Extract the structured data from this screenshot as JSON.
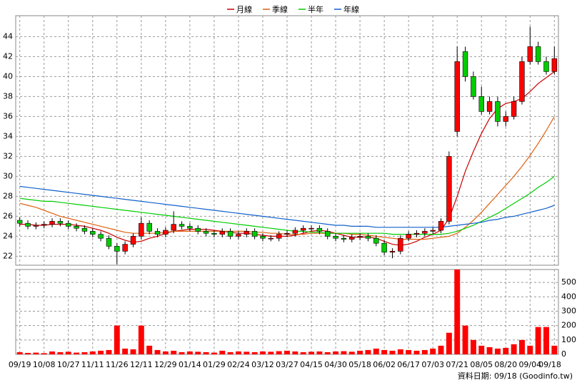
{
  "chart_data": {
    "type": "candlestick",
    "grid": true,
    "legend_position": "top",
    "up_color": "#ff0000",
    "down_color": "#00cc00",
    "categories": [
      "09/19",
      null,
      null,
      "10/08",
      null,
      null,
      "10/27",
      null,
      null,
      "11/11",
      null,
      null,
      "11/26",
      null,
      null,
      "12/11",
      null,
      null,
      "12/29",
      null,
      null,
      "01/14",
      null,
      null,
      "01/29",
      null,
      null,
      "02/24",
      null,
      null,
      "03/12",
      null,
      null,
      "03/27",
      null,
      null,
      "04/15",
      null,
      null,
      "04/30",
      null,
      null,
      "05/18",
      null,
      null,
      "06/02",
      null,
      null,
      "06/17",
      null,
      null,
      "07/03",
      null,
      null,
      "07/21",
      null,
      null,
      "08/05",
      null,
      null,
      "08/20",
      null,
      null,
      "09/04",
      null,
      null,
      "09/18"
    ],
    "open": [
      25.6,
      25.3,
      25.0,
      25.1,
      25.2,
      25.5,
      25.3,
      25.0,
      24.8,
      24.5,
      24.2,
      23.8,
      23.0,
      22.5,
      23.2,
      24.0,
      25.3,
      24.5,
      24.2,
      24.6,
      25.2,
      25.0,
      24.8,
      24.5,
      24.3,
      24.2,
      24.5,
      24.0,
      24.2,
      24.5,
      24.0,
      23.8,
      23.8,
      24.2,
      24.3,
      24.6,
      24.8,
      24.8,
      24.5,
      24.0,
      23.8,
      23.7,
      23.9,
      24.0,
      23.8,
      23.3,
      22.4,
      22.5,
      23.8,
      24.2,
      24.3,
      24.5,
      24.6,
      25.5,
      34.5,
      42.5,
      40.0,
      38.0,
      36.5,
      37.5,
      35.5,
      36.0,
      37.5,
      41.5,
      43.0,
      41.5,
      40.5
    ],
    "high": [
      25.9,
      25.6,
      25.4,
      25.5,
      25.8,
      25.8,
      25.6,
      25.3,
      25.1,
      24.8,
      24.5,
      24.1,
      23.3,
      23.5,
      24.3,
      25.9,
      25.6,
      24.8,
      24.9,
      26.5,
      25.5,
      25.3,
      25.1,
      24.8,
      24.6,
      24.8,
      24.8,
      24.5,
      24.8,
      24.8,
      24.3,
      24.1,
      24.5,
      24.6,
      24.9,
      25.1,
      25.1,
      25.1,
      24.8,
      24.3,
      24.1,
      24.2,
      24.3,
      24.3,
      24.1,
      23.6,
      22.8,
      24.1,
      24.5,
      24.6,
      24.8,
      24.9,
      25.8,
      32.5,
      43.0,
      43.0,
      40.5,
      39.0,
      38.0,
      38.0,
      36.5,
      38.0,
      42.0,
      45.0,
      43.5,
      42.0,
      43.0
    ],
    "low": [
      25.0,
      24.7,
      24.7,
      24.8,
      24.9,
      25.0,
      24.7,
      24.5,
      24.2,
      23.9,
      23.5,
      22.7,
      21.2,
      22.2,
      22.9,
      23.7,
      24.2,
      23.9,
      23.9,
      24.3,
      24.7,
      24.5,
      24.2,
      24.0,
      23.9,
      23.9,
      23.7,
      23.7,
      23.9,
      23.7,
      23.5,
      23.5,
      23.5,
      23.9,
      24.0,
      24.3,
      24.5,
      24.2,
      23.7,
      23.5,
      23.4,
      23.4,
      23.6,
      23.5,
      23.0,
      22.1,
      21.8,
      22.2,
      23.5,
      23.9,
      24.0,
      24.2,
      24.3,
      25.2,
      34.0,
      39.5,
      37.7,
      36.2,
      36.2,
      35.0,
      35.0,
      35.7,
      37.2,
      41.2,
      41.2,
      40.2,
      40.2
    ],
    "close": [
      25.3,
      25.0,
      25.1,
      25.2,
      25.5,
      25.3,
      25.0,
      24.8,
      24.5,
      24.2,
      23.8,
      23.0,
      22.5,
      23.2,
      24.0,
      25.3,
      24.5,
      24.2,
      24.6,
      25.2,
      25.0,
      24.8,
      24.5,
      24.3,
      24.2,
      24.5,
      24.0,
      24.2,
      24.5,
      24.0,
      23.8,
      23.8,
      24.2,
      24.3,
      24.6,
      24.8,
      24.8,
      24.5,
      24.0,
      23.8,
      23.7,
      23.9,
      24.0,
      23.8,
      23.3,
      22.4,
      22.5,
      23.8,
      24.2,
      24.3,
      24.5,
      24.6,
      25.5,
      32.0,
      41.5,
      40.0,
      38.0,
      36.5,
      37.5,
      35.5,
      36.0,
      37.5,
      41.5,
      43.0,
      41.5,
      40.5,
      41.8
    ],
    "lines": [
      {
        "name": "月線",
        "color": "#cc0000",
        "values": [
          25.2,
          25.2,
          25.1,
          25.1,
          25.2,
          25.2,
          25.2,
          25.1,
          25.0,
          24.8,
          24.6,
          24.3,
          23.9,
          23.6,
          23.4,
          23.5,
          23.8,
          24.0,
          24.3,
          24.5,
          24.6,
          24.7,
          24.7,
          24.7,
          24.6,
          24.5,
          24.4,
          24.3,
          24.3,
          24.2,
          24.1,
          24.0,
          24.0,
          24.0,
          24.1,
          24.3,
          24.5,
          24.6,
          24.5,
          24.3,
          24.1,
          23.9,
          23.9,
          23.9,
          23.8,
          23.5,
          23.2,
          23.1,
          23.2,
          23.5,
          23.9,
          24.2,
          24.6,
          25.8,
          28.0,
          30.5,
          32.5,
          34.3,
          35.8,
          36.8,
          37.3,
          37.5,
          37.8,
          38.5,
          39.3,
          39.9,
          40.5
        ]
      },
      {
        "name": "季線",
        "color": "#e06010",
        "values": [
          27.3,
          27.1,
          26.9,
          26.6,
          26.3,
          26.0,
          25.8,
          25.6,
          25.4,
          25.2,
          25.0,
          24.8,
          24.6,
          24.4,
          24.3,
          24.3,
          24.3,
          24.3,
          24.4,
          24.5,
          24.5,
          24.5,
          24.5,
          24.5,
          24.5,
          24.5,
          24.5,
          24.5,
          24.5,
          24.4,
          24.4,
          24.3,
          24.3,
          24.2,
          24.2,
          24.2,
          24.3,
          24.3,
          24.3,
          24.3,
          24.3,
          24.2,
          24.2,
          24.1,
          24.0,
          23.9,
          23.8,
          23.7,
          23.7,
          23.7,
          23.7,
          23.8,
          23.9,
          24.0,
          24.3,
          24.9,
          25.6,
          26.4,
          27.3,
          28.2,
          29.1,
          30.0,
          31.0,
          32.1,
          33.3,
          34.6,
          36.0
        ]
      },
      {
        "name": "半年",
        "color": "#00cc00",
        "values": [
          27.8,
          27.7,
          27.6,
          27.5,
          27.5,
          27.4,
          27.3,
          27.2,
          27.1,
          27.0,
          26.9,
          26.8,
          26.7,
          26.6,
          26.5,
          26.4,
          26.3,
          26.2,
          26.1,
          26.0,
          25.9,
          25.8,
          25.7,
          25.6,
          25.5,
          25.4,
          25.3,
          25.2,
          25.1,
          25.0,
          24.9,
          24.8,
          24.7,
          24.6,
          24.5,
          24.5,
          24.4,
          24.4,
          24.3,
          24.3,
          24.3,
          24.3,
          24.3,
          24.3,
          24.3,
          24.3,
          24.2,
          24.2,
          24.2,
          24.2,
          24.2,
          24.2,
          24.2,
          24.3,
          24.5,
          24.8,
          25.1,
          25.5,
          25.9,
          26.3,
          26.8,
          27.3,
          27.8,
          28.3,
          28.9,
          29.4,
          30.0
        ]
      },
      {
        "name": "年線",
        "color": "#1060cc",
        "values": [
          29.0,
          28.9,
          28.8,
          28.7,
          28.6,
          28.5,
          28.4,
          28.3,
          28.2,
          28.1,
          28.0,
          27.9,
          27.8,
          27.7,
          27.6,
          27.5,
          27.4,
          27.3,
          27.2,
          27.1,
          27.0,
          26.9,
          26.8,
          26.7,
          26.6,
          26.5,
          26.4,
          26.3,
          26.2,
          26.1,
          26.0,
          25.9,
          25.8,
          25.7,
          25.6,
          25.5,
          25.4,
          25.3,
          25.2,
          25.1,
          25.1,
          25.0,
          25.0,
          25.0,
          24.9,
          24.9,
          24.9,
          24.9,
          24.9,
          24.9,
          24.9,
          24.9,
          24.9,
          25.0,
          25.1,
          25.2,
          25.3,
          25.4,
          25.6,
          25.7,
          25.9,
          26.0,
          26.2,
          26.4,
          26.6,
          26.8,
          27.1
        ]
      }
    ],
    "ylim": [
      21.1,
      46.1
    ],
    "yticks": [
      22,
      24,
      26,
      28,
      30,
      32,
      34,
      36,
      38,
      40,
      42,
      44
    ],
    "volume": {
      "color": "#ff0000",
      "values": [
        15,
        10,
        12,
        8,
        20,
        15,
        18,
        12,
        15,
        20,
        25,
        30,
        200,
        40,
        35,
        200,
        60,
        30,
        20,
        25,
        15,
        20,
        18,
        15,
        12,
        25,
        15,
        20,
        18,
        15,
        20,
        18,
        22,
        25,
        20,
        15,
        18,
        20,
        15,
        20,
        22,
        18,
        25,
        30,
        40,
        30,
        25,
        35,
        30,
        25,
        30,
        40,
        60,
        150,
        590,
        200,
        100,
        60,
        50,
        40,
        45,
        70,
        100,
        60,
        190,
        190,
        60
      ],
      "ylim": [
        0,
        590
      ],
      "yticks": [
        0,
        100,
        200,
        300,
        400,
        500
      ]
    },
    "source": "資料日期: 09/18 (Goodinfo.tw)"
  }
}
